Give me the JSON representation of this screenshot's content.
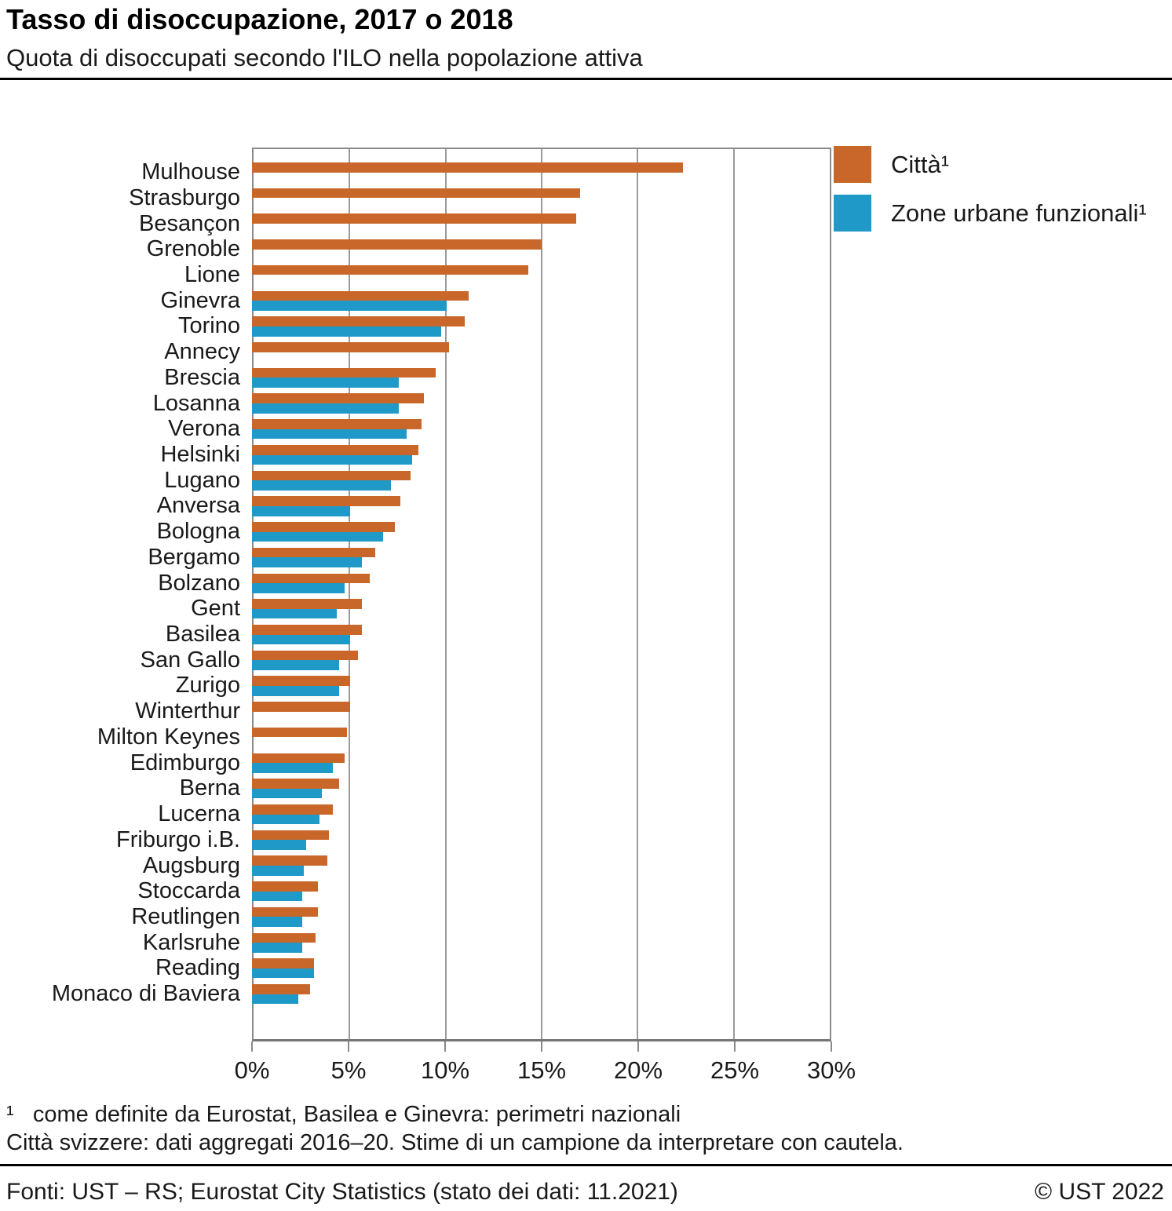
{
  "header": {
    "title": "Tasso di disoccupazione, 2017 o 2018",
    "subtitle": "Quota di disoccupati secondo l'ILO nella popolazione attiva"
  },
  "colors": {
    "citta": "#c9672a",
    "zone": "#1f9ac8",
    "grid": "#9b9b9b",
    "frame": "#8a8a8a"
  },
  "legend": {
    "items": [
      {
        "label": "Città¹",
        "color_key": "citta"
      },
      {
        "label": "Zone urbane funzionali¹",
        "color_key": "zone"
      }
    ]
  },
  "chart_data": {
    "type": "bar",
    "orientation": "horizontal",
    "title": "Tasso di disoccupazione, 2017 o 2018",
    "subtitle": "Quota di disoccupati secondo l'ILO nella popolazione attiva",
    "unit": "%",
    "xlim": [
      0,
      30
    ],
    "x_ticks": [
      "0%",
      "5%",
      "10%",
      "15%",
      "20%",
      "25%",
      "30%"
    ],
    "grid": true,
    "legend_position": "top-right",
    "categories": [
      "Mulhouse",
      "Strasburgo",
      "Besançon",
      "Grenoble",
      "Lione",
      "Ginevra",
      "Torino",
      "Annecy",
      "Brescia",
      "Losanna",
      "Verona",
      "Helsinki",
      "Lugano",
      "Anversa",
      "Bologna",
      "Bergamo",
      "Bolzano",
      "Gent",
      "Basilea",
      "San Gallo",
      "Zurigo",
      "Winterthur",
      "Milton Keynes",
      "Edimburgo",
      "Berna",
      "Lucerna",
      "Friburgo i.B.",
      "Augsburg",
      "Stoccarda",
      "Reutlingen",
      "Karlsruhe",
      "Reading",
      "Monaco di Baviera"
    ],
    "series": [
      {
        "name": "Città¹",
        "values": [
          22.3,
          17.0,
          16.8,
          15.0,
          14.3,
          11.2,
          11.0,
          10.2,
          9.5,
          8.9,
          8.8,
          8.6,
          8.2,
          7.7,
          7.4,
          6.4,
          6.1,
          5.7,
          5.7,
          5.5,
          5.1,
          5.1,
          4.9,
          4.8,
          4.5,
          4.2,
          4.0,
          3.9,
          3.4,
          3.4,
          3.3,
          3.2,
          3.0
        ]
      },
      {
        "name": "Zone urbane funzionali¹",
        "values": [
          null,
          null,
          null,
          null,
          null,
          10.1,
          9.8,
          null,
          7.6,
          7.6,
          8.0,
          8.3,
          7.2,
          5.1,
          6.8,
          5.7,
          4.8,
          4.4,
          5.1,
          4.5,
          4.5,
          null,
          null,
          4.2,
          3.6,
          3.5,
          2.8,
          2.7,
          2.6,
          2.6,
          2.6,
          3.2,
          2.4
        ]
      }
    ]
  },
  "footnotes": {
    "line1": "¹   come definite da Eurostat, Basilea e Ginevra: perimetri nazionali",
    "line2": "Città svizzere: dati aggregati 2016–20. Stime di un campione da interpretare con cautela."
  },
  "footer": {
    "source": "Fonti: UST – RS; Eurostat City Statistics (stato dei dati: 11.2021)",
    "copyright": "© UST 2022"
  }
}
